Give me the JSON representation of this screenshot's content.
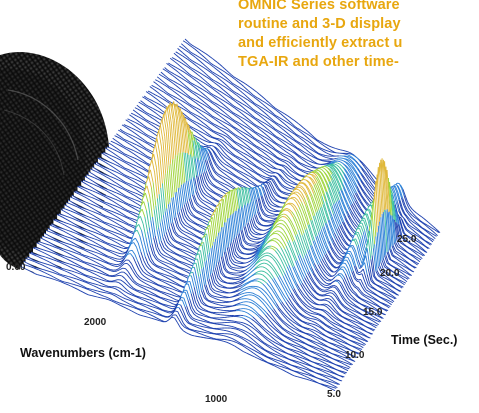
{
  "caption": {
    "lines": [
      "OMNIC Series software",
      "routine and 3-D display",
      "and efficiently extract u",
      "TGA-IR and other time-"
    ]
  },
  "chart_data": {
    "type": "3d-waterfall",
    "xlabel": "Wavenumbers (cm-1)",
    "ylabel": "Time (Sec.)",
    "x_ticks": [
      "2000",
      "1000"
    ],
    "time_ticks": [
      "5.0",
      "10.0",
      "15.0",
      "20.0",
      "25.0"
    ],
    "z_tick": "0.00",
    "x_range": [
      3900,
      700
    ],
    "time_range": [
      0,
      28
    ],
    "n_spectra": 90,
    "peaks": [
      {
        "center": 3000,
        "width": 55,
        "height": 1.0,
        "t_center": 0.4,
        "t_width": 0.13
      },
      {
        "center": 2340,
        "width": 40,
        "height": 0.55,
        "t_center": 0.35,
        "t_width": 0.18
      },
      {
        "center": 1750,
        "width": 160,
        "height": 0.55,
        "t_center": 0.55,
        "t_width": 0.25
      },
      {
        "center": 1200,
        "width": 60,
        "height": 0.35,
        "t_center": 0.75,
        "t_width": 0.2
      },
      {
        "center": 1050,
        "width": 25,
        "height": 0.85,
        "t_center": 0.72,
        "t_width": 0.08
      }
    ],
    "colors": [
      "#1b3fae",
      "#2a7fd6",
      "#3dbfa0",
      "#9ed43a",
      "#e0b83a",
      "#e0507a"
    ]
  },
  "image": {
    "subject": "black coiled tubing"
  }
}
